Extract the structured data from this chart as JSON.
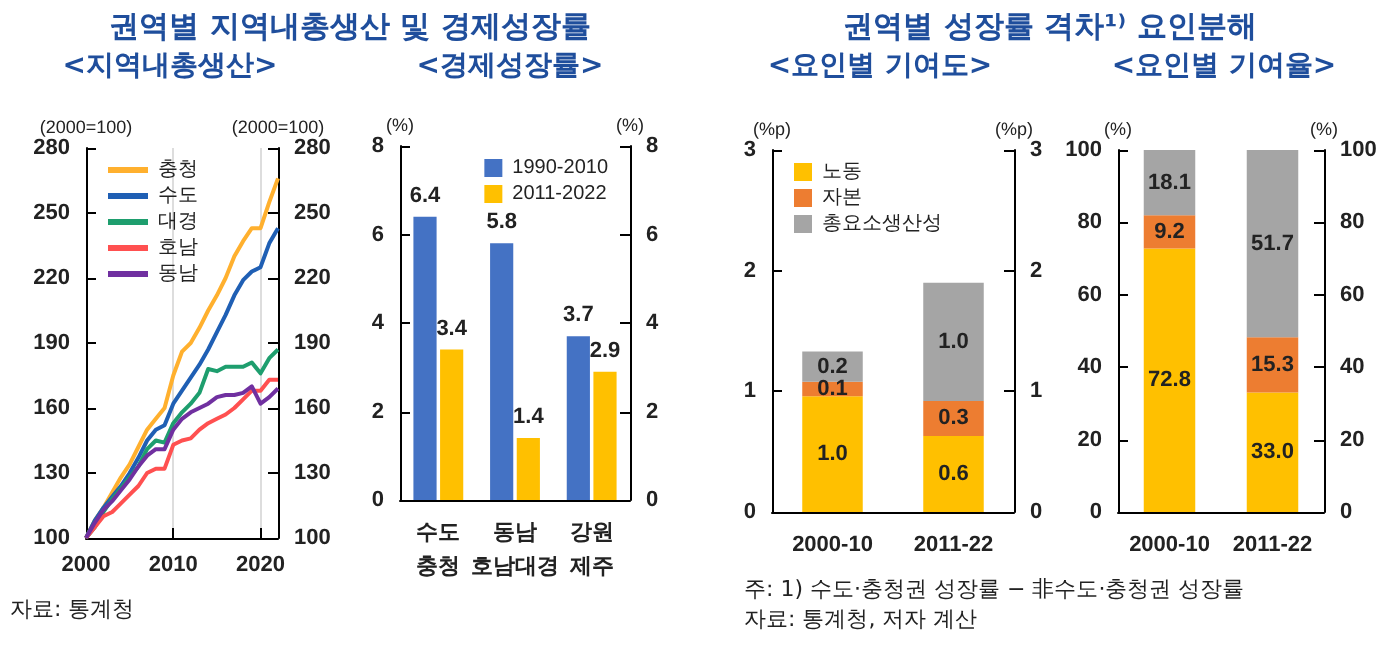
{
  "chart_data": [
    {
      "type": "line",
      "title": "권역별 지역내총생산 및 경제성장률",
      "subtitle": "<지역내총생산>",
      "ylabel": "(2000=100)",
      "y2label": "(2000=100)",
      "x": [
        2000,
        2001,
        2002,
        2003,
        2004,
        2005,
        2006,
        2007,
        2008,
        2009,
        2010,
        2011,
        2012,
        2013,
        2014,
        2015,
        2016,
        2017,
        2018,
        2019,
        2020,
        2021,
        2022
      ],
      "xlim": [
        2000,
        2022
      ],
      "xticks": [
        2000,
        2010,
        2020
      ],
      "ylim": [
        100,
        280
      ],
      "yticks": [
        100,
        130,
        160,
        190,
        220,
        250,
        280
      ],
      "y2lim": [
        100,
        280
      ],
      "y2ticks": [
        100,
        130,
        160,
        190,
        220,
        250,
        280
      ],
      "grid": "x",
      "legend": "top left",
      "marker": "none",
      "annotations": [
        "자료: 통계청"
      ],
      "series": [
        {
          "name": "충청",
          "color": "#ffb02e",
          "values": [
            100,
            108,
            114,
            121,
            128,
            134,
            142,
            150,
            155,
            160,
            175,
            186,
            190,
            197,
            205,
            212,
            220,
            230,
            237,
            243,
            243,
            255,
            266
          ]
        },
        {
          "name": "수도",
          "color": "#1f5fb4",
          "values": [
            100,
            108,
            114,
            119,
            124,
            130,
            137,
            145,
            150,
            152,
            162,
            168,
            174,
            180,
            187,
            195,
            203,
            212,
            219,
            223,
            225,
            236,
            243
          ]
        },
        {
          "name": "대경",
          "color": "#1e9e6e",
          "values": [
            100,
            105,
            112,
            118,
            123,
            128,
            133,
            141,
            145,
            144,
            153,
            158,
            162,
            167,
            178,
            177,
            179,
            179,
            179,
            181,
            176,
            183,
            187
          ]
        },
        {
          "name": "호남",
          "color": "#ff5050",
          "values": [
            100,
            105,
            110,
            112,
            116,
            120,
            124,
            130,
            132,
            132,
            143,
            145,
            146,
            150,
            153,
            155,
            157,
            160,
            164,
            168,
            168,
            173,
            173
          ]
        },
        {
          "name": "동남",
          "color": "#7030a0",
          "values": [
            100,
            107,
            113,
            117,
            122,
            127,
            133,
            138,
            141,
            141,
            150,
            155,
            158,
            160,
            162,
            165,
            166,
            166,
            167,
            170,
            162,
            165,
            169
          ]
        }
      ]
    },
    {
      "type": "bar",
      "subtitle": "<경제성장률>",
      "ylabel": "(%)",
      "y2label": "(%)",
      "categories": [
        "수도\n충청",
        "동남\n호남대경",
        "강원\n제주"
      ],
      "ylim": [
        0,
        8
      ],
      "yticks": [
        0,
        2,
        4,
        6,
        8
      ],
      "y2lim": [
        0,
        8
      ],
      "y2ticks": [
        0,
        2,
        4,
        6,
        8
      ],
      "legend": "top right",
      "data_labels": true,
      "series": [
        {
          "name": "1990-2010",
          "color": "#4472c4",
          "values": [
            6.4,
            5.8,
            3.7
          ]
        },
        {
          "name": "2011-2022",
          "color": "#ffc000",
          "values": [
            3.4,
            1.4,
            2.9
          ]
        }
      ]
    },
    {
      "type": "bar",
      "title": "권역별 성장률 격차¹⁾ 요인분해",
      "subtitle": "<요인별 기여도>",
      "ylabel": "(%p)",
      "y2label": "(%p)",
      "categories": [
        "2000-10",
        "2011-22"
      ],
      "ylim": [
        0,
        3
      ],
      "yticks": [
        0,
        1,
        2,
        3
      ],
      "y2lim": [
        0,
        3
      ],
      "y2ticks": [
        0,
        1,
        2,
        3
      ],
      "stacked": true,
      "legend": "top left",
      "series": [
        {
          "name": "노동",
          "color": "#ffc000",
          "values": [
            0.96,
            0.63
          ],
          "value_labels": [
            "1.0",
            "0.6"
          ]
        },
        {
          "name": "자본",
          "color": "#ed7d31",
          "values": [
            0.12,
            0.29
          ],
          "value_labels": [
            "0.1",
            "0.3"
          ]
        },
        {
          "name": "총요소생산성",
          "color": "#a5a5a5",
          "values": [
            0.25,
            0.98
          ],
          "value_labels": [
            "0.2",
            "1.0"
          ]
        }
      ]
    },
    {
      "type": "bar",
      "subtitle": "<요인별 기여율>",
      "ylabel": "(%)",
      "y2label": "(%)",
      "categories": [
        "2000-10",
        "2011-22"
      ],
      "ylim": [
        0,
        100
      ],
      "yticks": [
        0,
        20,
        40,
        60,
        80,
        100
      ],
      "y2lim": [
        0,
        100
      ],
      "y2ticks": [
        0,
        20,
        40,
        60,
        80,
        100
      ],
      "stacked": true,
      "annotations": [
        "주: 1) 수도·충청권 성장률 − 非수도·충청권 성장률",
        "자료: 통계청, 저자 계산"
      ],
      "series": [
        {
          "color": "#ffc000",
          "values": [
            72.8,
            33.0
          ],
          "value_labels": [
            "72.8",
            "33.0"
          ]
        },
        {
          "color": "#ed7d31",
          "values": [
            9.2,
            15.3
          ],
          "value_labels": [
            "9.2",
            "15.3"
          ]
        },
        {
          "color": "#a5a5a5",
          "values": [
            18.1,
            51.7
          ],
          "value_labels": [
            "18.1",
            "51.7"
          ]
        }
      ]
    }
  ]
}
